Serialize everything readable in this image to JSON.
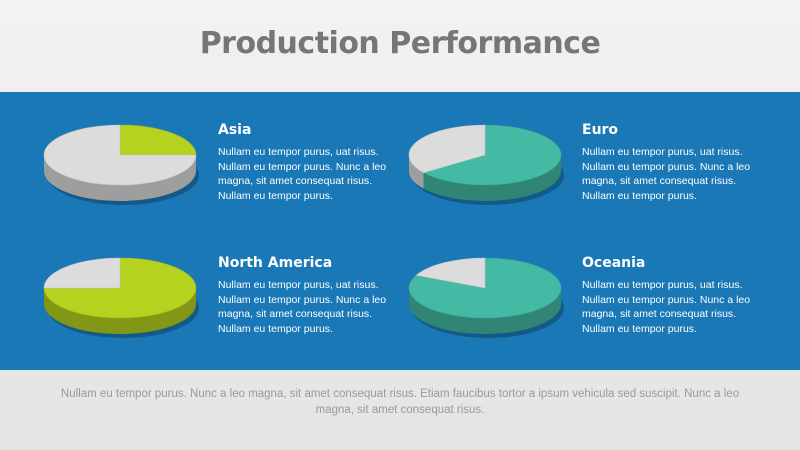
{
  "page": {
    "title": "Production Performance",
    "footer": "Nullam eu tempor purus. Nunc a leo magna, sit amet consequat risus. Etiam faucibus tortor a ipsum vehicula sed suscipit. Nunc a leo magna, sit amet consequat risus."
  },
  "colors": {
    "band": "#1a78b6",
    "lime": "#b5d21e",
    "teal": "#44b9a3",
    "grey": "#dcdcdc"
  },
  "chart_data": [
    {
      "type": "pie",
      "title": "Asia",
      "description": "Nullam eu tempor purus, uat risus. Nullam eu tempor purus. Nunc a leo magna, sit amet consequat risus. Nullam eu tempor purus.",
      "values": [
        25,
        75
      ],
      "colors": [
        "#b5d21e",
        "#dcdcdc"
      ]
    },
    {
      "type": "pie",
      "title": "Euro",
      "description": "Nullam eu tempor purus, uat risus. Nullam eu tempor purus. Nunc a leo magna, sit amet consequat risus. Nullam eu tempor purus.",
      "values": [
        65,
        35
      ],
      "colors": [
        "#44b9a3",
        "#dcdcdc"
      ]
    },
    {
      "type": "pie",
      "title": "North America",
      "description": "Nullam eu tempor purus, uat risus. Nullam eu tempor purus. Nunc a leo magna, sit amet consequat risus. Nullam eu tempor purus.",
      "values": [
        75,
        25
      ],
      "colors": [
        "#b5d21e",
        "#dcdcdc"
      ]
    },
    {
      "type": "pie",
      "title": "Oceania",
      "description": "Nullam eu tempor purus, uat risus. Nullam eu tempor purus. Nunc a leo magna, sit amet consequat risus. Nullam eu tempor purus.",
      "values": [
        82,
        18
      ],
      "colors": [
        "#44b9a3",
        "#dcdcdc"
      ]
    }
  ]
}
